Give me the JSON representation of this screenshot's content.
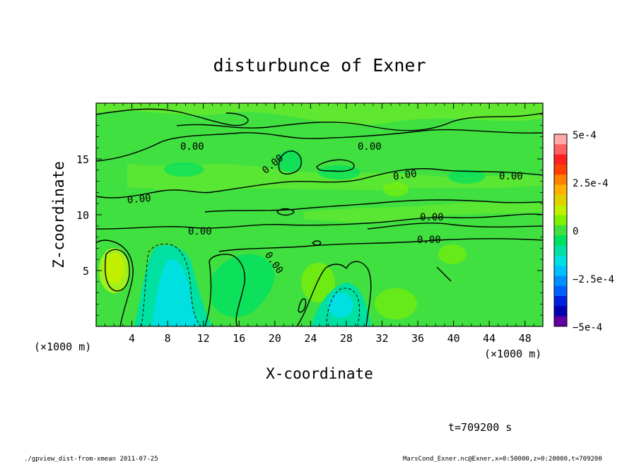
{
  "chart_data": {
    "type": "heatmap",
    "title": "disturbunce of Exner",
    "xlabel": "X-coordinate",
    "ylabel": "Z-coordinate",
    "x_unit": "(×1000 m)",
    "y_unit": "(×1000 m)",
    "xlim": [
      0,
      50
    ],
    "ylim": [
      0,
      20
    ],
    "x_ticks": [
      4,
      8,
      12,
      16,
      20,
      24,
      28,
      32,
      36,
      40,
      44,
      48
    ],
    "y_ticks": [
      5,
      10,
      15
    ],
    "colorbar": {
      "range": [
        -0.0005,
        0.0005
      ],
      "labels": [
        "5e-4",
        "2.5e-4",
        "0",
        "−2.5e-4",
        "−5e-4"
      ],
      "colors": [
        "#ffaaaa",
        "#ff6060",
        "#ff2020",
        "#ff4000",
        "#ff8000",
        "#ffb000",
        "#e0d000",
        "#c0f000",
        "#80f000",
        "#40e040",
        "#00e060",
        "#00e0a0",
        "#00e0e0",
        "#00c0ff",
        "#0090ff",
        "#0060ff",
        "#0020e0",
        "#0000b0",
        "#6000a0"
      ]
    },
    "contour_labels": [
      "0.00",
      "0.00",
      "0.00",
      "0.00",
      "0.00",
      "0.00",
      "0.00",
      "0.00",
      "0.00",
      "0.00"
    ],
    "annotation_time": "t=709200 s",
    "footer_left": "./gpview_dist-from-xmean  2011-07-25",
    "footer_right": "MarsCond_Exner.nc@Exner,x=0:50000,z=0:20000,t=709200"
  }
}
